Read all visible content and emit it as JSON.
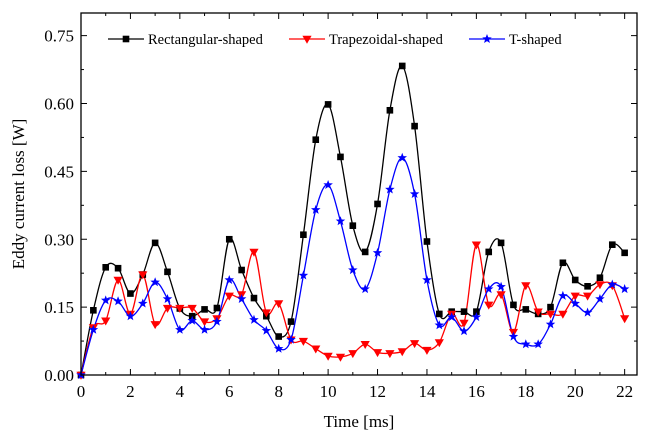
{
  "chart_data": {
    "type": "line",
    "xlabel": "Time [ms]",
    "ylabel": "Eddy current loss [W]",
    "xlim": [
      0,
      22.5
    ],
    "ylim": [
      0,
      0.8
    ],
    "x_ticks": [
      0,
      2,
      4,
      6,
      8,
      10,
      12,
      14,
      16,
      18,
      20,
      22
    ],
    "x_tick_labels": [
      "0",
      "2",
      "4",
      "6",
      "8",
      "10",
      "12",
      "14",
      "16",
      "18",
      "20",
      "22"
    ],
    "y_ticks": [
      0,
      0.15,
      0.3,
      0.45,
      0.6,
      0.75
    ],
    "y_tick_labels": [
      "0.00",
      "0.15",
      "0.30",
      "0.45",
      "0.60",
      "0.75"
    ],
    "legend_position": "top",
    "grid": false,
    "series": [
      {
        "name": "Rectangular-shaped",
        "color": "#000000",
        "marker": "square",
        "x": [
          0,
          0.5,
          1,
          1.5,
          2,
          2.5,
          3,
          3.5,
          4,
          4.5,
          5,
          5.5,
          6,
          6.5,
          7,
          7.5,
          8,
          8.5,
          9,
          9.5,
          10,
          10.5,
          11,
          11.5,
          12,
          12.5,
          13,
          13.5,
          14,
          14.5,
          15,
          15.5,
          16,
          16.5,
          17,
          17.5,
          18,
          18.5,
          19,
          19.5,
          20,
          20.5,
          21,
          21.5,
          22
        ],
        "values": [
          0.0,
          0.143,
          0.238,
          0.236,
          0.18,
          0.222,
          0.292,
          0.228,
          0.147,
          0.13,
          0.145,
          0.148,
          0.3,
          0.232,
          0.17,
          0.13,
          0.085,
          0.118,
          0.31,
          0.52,
          0.598,
          0.482,
          0.33,
          0.272,
          0.378,
          0.585,
          0.683,
          0.55,
          0.295,
          0.135,
          0.14,
          0.14,
          0.14,
          0.272,
          0.292,
          0.155,
          0.145,
          0.135,
          0.15,
          0.248,
          0.21,
          0.196,
          0.215,
          0.288,
          0.27
        ]
      },
      {
        "name": "Trapezoidal-shaped",
        "color": "#ff0000",
        "marker": "triangle-down",
        "x": [
          0,
          0.5,
          1,
          1.5,
          2,
          2.5,
          3,
          3.5,
          4,
          4.5,
          5,
          5.5,
          6,
          6.5,
          7,
          7.5,
          8,
          8.5,
          9,
          9.5,
          10,
          10.5,
          11,
          11.5,
          12,
          12.5,
          13,
          13.5,
          14,
          14.5,
          15,
          15.5,
          16,
          16.5,
          17,
          17.5,
          18,
          18.5,
          19,
          19.5,
          20,
          20.5,
          21,
          21.5,
          22
        ],
        "values": [
          0.0,
          0.105,
          0.12,
          0.21,
          0.135,
          0.222,
          0.112,
          0.148,
          0.148,
          0.148,
          0.118,
          0.125,
          0.175,
          0.178,
          0.272,
          0.138,
          0.158,
          0.078,
          0.075,
          0.058,
          0.042,
          0.04,
          0.048,
          0.068,
          0.05,
          0.048,
          0.052,
          0.07,
          0.055,
          0.072,
          0.135,
          0.115,
          0.288,
          0.155,
          0.178,
          0.095,
          0.198,
          0.14,
          0.135,
          0.135,
          0.175,
          0.175,
          0.2,
          0.198,
          0.125
        ]
      },
      {
        "name": "T-shaped",
        "color": "#0000ff",
        "marker": "star",
        "x": [
          0,
          0.5,
          1,
          1.5,
          2,
          2.5,
          3,
          3.5,
          4,
          4.5,
          5,
          5.5,
          6,
          6.5,
          7,
          7.5,
          8,
          8.5,
          9,
          9.5,
          10,
          10.5,
          11,
          11.5,
          12,
          12.5,
          13,
          13.5,
          14,
          14.5,
          15,
          15.5,
          16,
          16.5,
          17,
          17.5,
          18,
          18.5,
          19,
          19.5,
          20,
          20.5,
          21,
          21.5,
          22
        ],
        "values": [
          0.0,
          0.1,
          0.165,
          0.163,
          0.13,
          0.158,
          0.205,
          0.168,
          0.1,
          0.12,
          0.1,
          0.118,
          0.21,
          0.168,
          0.122,
          0.098,
          0.058,
          0.078,
          0.22,
          0.365,
          0.42,
          0.34,
          0.232,
          0.19,
          0.27,
          0.41,
          0.48,
          0.4,
          0.21,
          0.11,
          0.128,
          0.097,
          0.128,
          0.19,
          0.195,
          0.085,
          0.068,
          0.068,
          0.112,
          0.175,
          0.158,
          0.138,
          0.168,
          0.2,
          0.19
        ]
      }
    ]
  }
}
